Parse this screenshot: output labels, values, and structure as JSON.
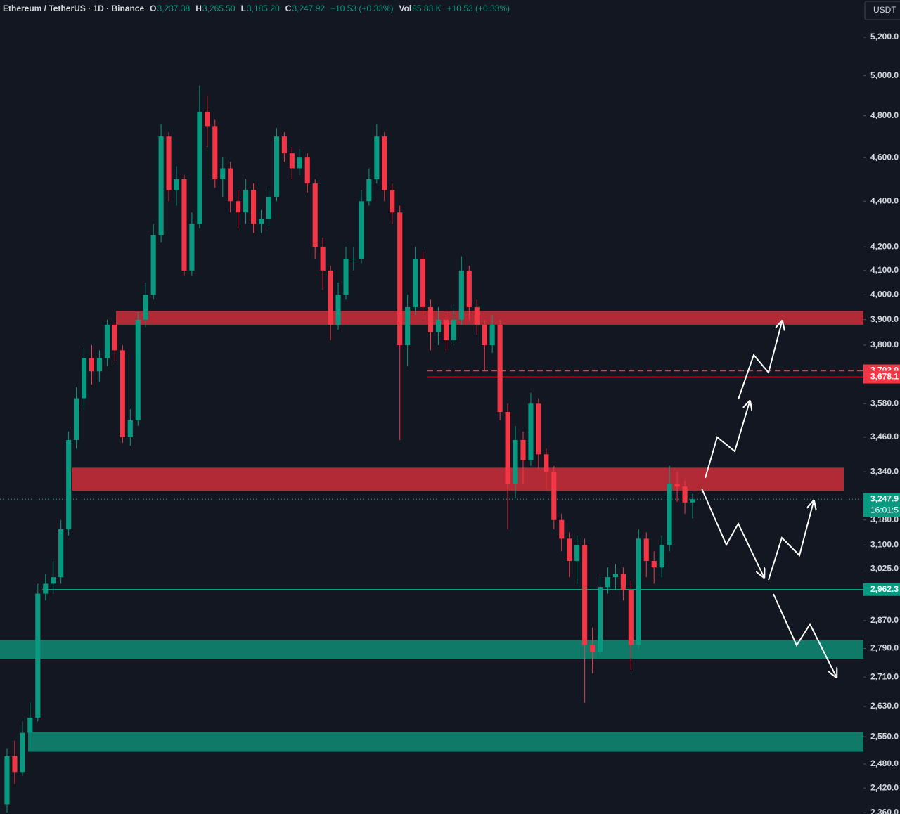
{
  "chart_data": {
    "type": "candlestick",
    "header": {
      "symbol": "Ethereum / TetherUS · 1D · Binance",
      "o_key": "O",
      "o": "3,237.38",
      "h_key": "H",
      "h": "3,265.50",
      "l_key": "L",
      "l": "3,185.20",
      "c_key": "C",
      "c": "3,247.92",
      "change": "+10.53 (+0.33%)",
      "vol_key": "Vol",
      "vol": "85.83 K",
      "vol_change": "+10.53 (+0.33%)"
    },
    "currency": "USDT",
    "log_scale": true,
    "grid": false,
    "up_color": "#089981",
    "down_color": "#f23645",
    "ylim": [
      2357,
      5401
    ],
    "yticks": [
      {
        "value": 2360,
        "label": "2,360.0"
      },
      {
        "value": 2420,
        "label": "2,420.0"
      },
      {
        "value": 2480,
        "label": "2,480.0"
      },
      {
        "value": 2550,
        "label": "2,550.0"
      },
      {
        "value": 2630,
        "label": "2,630.0"
      },
      {
        "value": 2710,
        "label": "2,710.0"
      },
      {
        "value": 2790,
        "label": "2,790.0"
      },
      {
        "value": 2870,
        "label": "2,870.0"
      },
      {
        "value": 3025,
        "label": "3,025.0"
      },
      {
        "value": 3100,
        "label": "3,100.0"
      },
      {
        "value": 3180,
        "label": "3,180.0"
      },
      {
        "value": 3340,
        "label": "3,340.0"
      },
      {
        "value": 3460,
        "label": "3,460.0"
      },
      {
        "value": 3580,
        "label": "3,580.0"
      },
      {
        "value": 3800,
        "label": "3,800.0"
      },
      {
        "value": 3900,
        "label": "3,900.0"
      },
      {
        "value": 4000,
        "label": "4,000.0"
      },
      {
        "value": 4100,
        "label": "4,100.0"
      },
      {
        "value": 4200,
        "label": "4,200.0"
      },
      {
        "value": 4400,
        "label": "4,400.0"
      },
      {
        "value": 4600,
        "label": "4,600.0"
      },
      {
        "value": 4800,
        "label": "4,800.0"
      },
      {
        "value": 5000,
        "label": "5,000.0"
      },
      {
        "value": 5200,
        "label": "5,200.0"
      }
    ],
    "open": [
      2380,
      2500,
      2460,
      2560,
      2600,
      2950,
      2980,
      3000,
      3150,
      3450,
      3600,
      3750,
      3700,
      3750,
      3880,
      3780,
      3460,
      3520,
      3900,
      4000,
      4250,
      4700,
      4450,
      4500,
      4100,
      4300,
      4820,
      4750,
      4500,
      4550,
      4400,
      4350,
      4450,
      4300,
      4320,
      4420,
      4700,
      4620,
      4550,
      4600,
      4480,
      4200,
      4100,
      3880,
      4000,
      4150,
      4150,
      4400,
      4500,
      4700,
      4450,
      4350,
      3800,
      3950,
      4150,
      3950,
      3850,
      3900,
      3820,
      3900,
      4100,
      3950,
      3880,
      3800,
      3880,
      3550,
      3300,
      3450,
      3380,
      3580,
      3400,
      3340,
      3180,
      3120,
      3050,
      3100,
      2800,
      2780,
      2970,
      3000,
      3010,
      2960,
      2800,
      3120,
      3050,
      3030,
      3100,
      3300,
      3290,
      3237.38
    ],
    "high": [
      2520,
      2540,
      2590,
      2640,
      2980,
      3010,
      3050,
      3180,
      3480,
      3640,
      3790,
      3800,
      3780,
      3900,
      3890,
      3800,
      3560,
      3930,
      4050,
      4300,
      4760,
      4720,
      4560,
      4520,
      4350,
      4950,
      4900,
      4780,
      4600,
      4580,
      4450,
      4500,
      4480,
      4360,
      4460,
      4740,
      4720,
      4650,
      4640,
      4620,
      4500,
      4240,
      4120,
      4050,
      4200,
      4200,
      4450,
      4550,
      4760,
      4720,
      4480,
      4380,
      4000,
      4200,
      4180,
      3980,
      3950,
      3930,
      3960,
      4160,
      4120,
      3980,
      3900,
      3920,
      3900,
      3580,
      3500,
      3480,
      3620,
      3600,
      3420,
      3360,
      3200,
      3140,
      3130,
      3120,
      2850,
      3000,
      3030,
      3040,
      3030,
      2990,
      3150,
      3140,
      3080,
      3130,
      3360,
      3340,
      3310,
      3265.5
    ],
    "low": [
      2360,
      2430,
      2450,
      2520,
      2590,
      2930,
      2950,
      2980,
      3130,
      3420,
      3560,
      3650,
      3660,
      3720,
      3740,
      3440,
      3430,
      3500,
      3870,
      3980,
      4220,
      4400,
      4380,
      4080,
      4080,
      4280,
      4650,
      4460,
      4420,
      4350,
      4280,
      4300,
      4260,
      4260,
      4290,
      4400,
      4580,
      4500,
      4520,
      4440,
      4150,
      4020,
      3820,
      3860,
      3980,
      4100,
      4130,
      4380,
      4480,
      4400,
      4300,
      3450,
      3720,
      3920,
      3900,
      3780,
      3800,
      3780,
      3800,
      3880,
      3900,
      3840,
      3700,
      3770,
      3520,
      3150,
      3250,
      3300,
      3360,
      3350,
      3280,
      3150,
      3080,
      3000,
      2980,
      2640,
      2720,
      2770,
      2950,
      2960,
      2930,
      2730,
      2790,
      3000,
      2980,
      3000,
      3080,
      3240,
      3200,
      3185.2
    ],
    "close": [
      2500,
      2460,
      2560,
      2600,
      2950,
      2980,
      3000,
      3150,
      3450,
      3600,
      3750,
      3700,
      3750,
      3880,
      3780,
      3460,
      3520,
      3900,
      4000,
      4250,
      4700,
      4450,
      4500,
      4100,
      4300,
      4820,
      4750,
      4500,
      4550,
      4400,
      4350,
      4450,
      4300,
      4320,
      4420,
      4700,
      4620,
      4550,
      4600,
      4480,
      4200,
      4100,
      3880,
      4000,
      4150,
      4150,
      4400,
      4500,
      4700,
      4450,
      4350,
      3800,
      3950,
      4150,
      3950,
      3850,
      3900,
      3820,
      3900,
      4100,
      3950,
      3880,
      3800,
      3880,
      3550,
      3300,
      3450,
      3380,
      3580,
      3400,
      3340,
      3180,
      3120,
      3050,
      3100,
      2800,
      2780,
      2970,
      3000,
      3010,
      2960,
      2800,
      3120,
      3050,
      3030,
      3100,
      3300,
      3290,
      3237.38,
      3247.92
    ],
    "zones": [
      {
        "low": 3880,
        "high": 3935,
        "color": "#b22a35"
      },
      {
        "low": 3276,
        "high": 3354,
        "color": "#b22a35"
      },
      {
        "low": 2761,
        "high": 2814,
        "color": "#0f7a68"
      },
      {
        "low": 2511,
        "high": 2562,
        "color": "#0f7a68"
      }
    ],
    "levels": [
      {
        "value": 3702.0,
        "label": "3,702.0",
        "color": "#f23645",
        "dashed": true
      },
      {
        "value": 3678.1,
        "label": "3,678.1",
        "color": "#f23645",
        "dashed": false
      },
      {
        "value": 2962.3,
        "label": "2,962.3",
        "color": "#089981",
        "dashed": false
      }
    ],
    "last_price": {
      "value": 3247.9,
      "label": "3,247.9",
      "countdown": "16:01:5",
      "color": "#089981"
    }
  }
}
